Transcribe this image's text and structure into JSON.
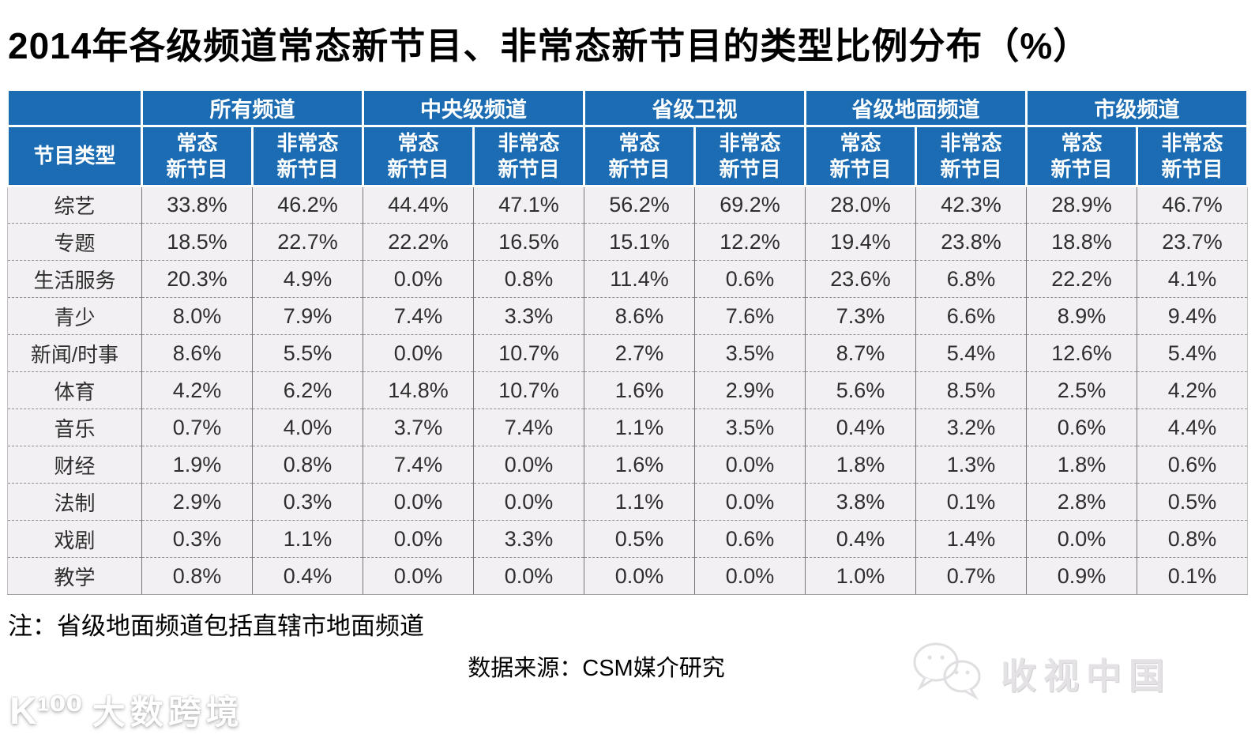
{
  "page": {
    "title": "2014年各级频道常态新节目、非常态新节目的类型比例分布（%）",
    "note": "注：省级地面频道包括直辖市地面频道",
    "source": "数据来源：CSM媒介研究",
    "watermark_left": {
      "logo_mark": "K¹⁰⁰",
      "brand": "大数跨境"
    },
    "watermark_right": {
      "icon": "wechat-icon",
      "text": "收视中国"
    }
  },
  "colors": {
    "header_blue": "#1b6cb2",
    "cell_bg": "#f3f0f3",
    "border_dark": "#777777",
    "border_dash": "#8f8f8f",
    "text_dark": "#2e2e2e"
  },
  "chart_data": {
    "type": "table",
    "title": "2014年各级频道常态新节目、非常态新节目的类型比例分布（%）",
    "row_header_label": "节目类型",
    "column_groups": [
      "所有频道",
      "中央级频道",
      "省级卫视",
      "省级地面频道",
      "市级频道"
    ],
    "subcolumns": [
      "常态新节目",
      "非常态新节目"
    ],
    "subcolumn_display": [
      [
        "常态",
        "新节目"
      ],
      [
        "非常态",
        "新节目"
      ]
    ],
    "rows": [
      {
        "category": "综艺",
        "values": [
          "33.8%",
          "46.2%",
          "44.4%",
          "47.1%",
          "56.2%",
          "69.2%",
          "28.0%",
          "42.3%",
          "28.9%",
          "46.7%"
        ]
      },
      {
        "category": "专题",
        "values": [
          "18.5%",
          "22.7%",
          "22.2%",
          "16.5%",
          "15.1%",
          "12.2%",
          "19.4%",
          "23.8%",
          "18.8%",
          "23.7%"
        ]
      },
      {
        "category": "生活服务",
        "values": [
          "20.3%",
          "4.9%",
          "0.0%",
          "0.8%",
          "11.4%",
          "0.6%",
          "23.6%",
          "6.8%",
          "22.2%",
          "4.1%"
        ]
      },
      {
        "category": "青少",
        "values": [
          "8.0%",
          "7.9%",
          "7.4%",
          "3.3%",
          "8.6%",
          "7.6%",
          "7.3%",
          "6.6%",
          "8.9%",
          "9.4%"
        ]
      },
      {
        "category": "新闻/时事",
        "values": [
          "8.6%",
          "5.5%",
          "0.0%",
          "10.7%",
          "2.7%",
          "3.5%",
          "8.7%",
          "5.4%",
          "12.6%",
          "5.4%"
        ]
      },
      {
        "category": "体育",
        "values": [
          "4.2%",
          "6.2%",
          "14.8%",
          "10.7%",
          "1.6%",
          "2.9%",
          "5.6%",
          "8.5%",
          "2.5%",
          "4.2%"
        ]
      },
      {
        "category": "音乐",
        "values": [
          "0.7%",
          "4.0%",
          "3.7%",
          "7.4%",
          "1.1%",
          "3.5%",
          "0.4%",
          "3.2%",
          "0.6%",
          "4.4%"
        ]
      },
      {
        "category": "财经",
        "values": [
          "1.9%",
          "0.8%",
          "7.4%",
          "0.0%",
          "1.6%",
          "0.0%",
          "1.8%",
          "1.3%",
          "1.8%",
          "0.6%"
        ]
      },
      {
        "category": "法制",
        "values": [
          "2.9%",
          "0.3%",
          "0.0%",
          "0.0%",
          "1.1%",
          "0.0%",
          "3.8%",
          "0.1%",
          "2.8%",
          "0.5%"
        ]
      },
      {
        "category": "戏剧",
        "values": [
          "0.3%",
          "1.1%",
          "0.0%",
          "3.3%",
          "0.5%",
          "0.6%",
          "0.4%",
          "1.4%",
          "0.0%",
          "0.8%"
        ]
      },
      {
        "category": "教学",
        "values": [
          "0.8%",
          "0.4%",
          "0.0%",
          "0.0%",
          "0.0%",
          "0.0%",
          "1.0%",
          "0.7%",
          "0.9%",
          "0.1%"
        ]
      }
    ],
    "note": "注：省级地面频道包括直辖市地面频道",
    "source": "数据来源：CSM媒介研究"
  }
}
